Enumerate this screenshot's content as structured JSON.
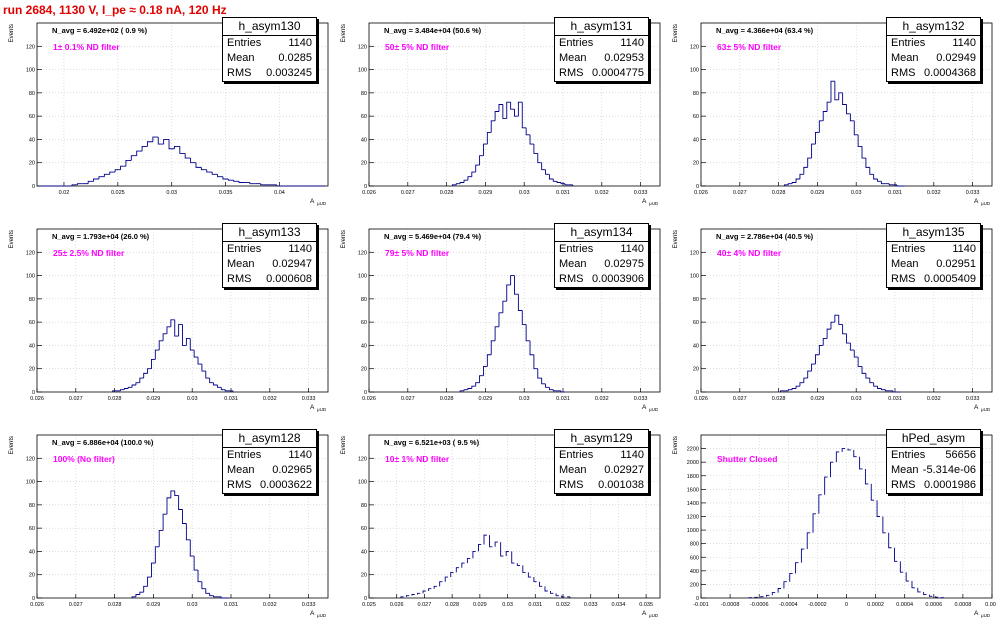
{
  "run_title": "run 2684,  1130 V, I_pe ≈ 0.18 nA, 120 Hz",
  "colors": {
    "title": "#e00000",
    "hist": "#00008b",
    "annotation": "#ff00ff",
    "grid": "#c8c8c8"
  },
  "stat_labels": {
    "entries": "Entries",
    "mean": "Mean",
    "rms": "RMS"
  },
  "y_title": "Events",
  "x_title": "A",
  "x_title_sub": "μUD",
  "chart_data": [
    {
      "type": "bar",
      "name": "h_asym130",
      "navg": "N_avg = 6.492e+02 ( 0.9 %)",
      "filter": "1± 0.1% ND filter",
      "entries": "1140",
      "mean": "0.0285",
      "rms": "0.003245",
      "xmin": 0.0175,
      "xmax": 0.0445,
      "ymin": 0,
      "ymax": 140,
      "xticks": [
        0.02,
        0.025,
        0.03,
        0.035,
        0.04
      ],
      "xtick_labels": [
        "0.02",
        "0.025",
        "0.03",
        "0.035",
        "0.04"
      ],
      "yticks": [
        0,
        20,
        40,
        60,
        80,
        100,
        120
      ],
      "ytick_labels": [
        "0",
        "20",
        "40",
        "60",
        "80",
        "100",
        "120"
      ],
      "bin_width": 0.0005,
      "centers": [
        0.018,
        0.0185,
        0.019,
        0.0195,
        0.02,
        0.0205,
        0.021,
        0.0215,
        0.022,
        0.0225,
        0.023,
        0.0235,
        0.024,
        0.0245,
        0.025,
        0.0255,
        0.026,
        0.0265,
        0.027,
        0.0275,
        0.028,
        0.0285,
        0.029,
        0.0295,
        0.03,
        0.0305,
        0.031,
        0.0315,
        0.032,
        0.0325,
        0.033,
        0.0335,
        0.034,
        0.0345,
        0.035,
        0.0355,
        0.036,
        0.0365,
        0.037,
        0.0375,
        0.038,
        0.0385,
        0.039,
        0.0395,
        0.04,
        0.0405,
        0.041,
        0.0415,
        0.042,
        0.0425,
        0.043,
        0.0435,
        0.044
      ],
      "counts": [
        0,
        0,
        0,
        0,
        0,
        0,
        1,
        2,
        2,
        4,
        6,
        8,
        10,
        12,
        14,
        17,
        22,
        26,
        30,
        34,
        38,
        42,
        36,
        40,
        32,
        34,
        28,
        24,
        20,
        16,
        14,
        12,
        10,
        8,
        6,
        5,
        4,
        3,
        3,
        2,
        2,
        1,
        1,
        1,
        0,
        0,
        0,
        0,
        0,
        0,
        0,
        0,
        0
      ]
    },
    {
      "type": "bar",
      "name": "h_asym131",
      "navg": "N_avg = 3.484e+04 (50.6 %)",
      "filter": "50± 5% ND filter",
      "entries": "1140",
      "mean": "0.02953",
      "rms": "0.0004775",
      "xmin": 0.026,
      "xmax": 0.0335,
      "ymin": 0,
      "ymax": 140,
      "xticks": [
        0.026,
        0.027,
        0.028,
        0.029,
        0.03,
        0.031,
        0.032,
        0.033
      ],
      "xtick_labels": [
        "0.026",
        "0.027",
        "0.028",
        "0.029",
        "0.03",
        "0.031",
        "0.032",
        "0.033"
      ],
      "yticks": [
        0,
        20,
        40,
        60,
        80,
        100,
        120
      ],
      "ytick_labels": [
        "0",
        "20",
        "40",
        "60",
        "80",
        "100",
        "120"
      ],
      "bin_width": 0.0001,
      "centers": [
        0.0282,
        0.0283,
        0.0284,
        0.0285,
        0.0286,
        0.0287,
        0.0288,
        0.0289,
        0.029,
        0.0291,
        0.0292,
        0.0293,
        0.0294,
        0.0295,
        0.0296,
        0.0297,
        0.0298,
        0.0299,
        0.03,
        0.0301,
        0.0302,
        0.0303,
        0.0304,
        0.0305,
        0.0306,
        0.0307,
        0.0308,
        0.0309,
        0.031,
        0.0311,
        0.0312
      ],
      "counts": [
        1,
        2,
        3,
        5,
        8,
        12,
        18,
        26,
        36,
        46,
        56,
        64,
        70,
        58,
        72,
        66,
        60,
        72,
        50,
        44,
        36,
        28,
        20,
        14,
        10,
        6,
        4,
        3,
        2,
        1,
        1
      ]
    },
    {
      "type": "bar",
      "name": "h_asym132",
      "navg": "N_avg = 4.366e+04 (63.4 %)",
      "filter": "63± 5% ND filter",
      "entries": "1140",
      "mean": "0.02949",
      "rms": "0.0004368",
      "xmin": 0.026,
      "xmax": 0.0335,
      "ymin": 0,
      "ymax": 140,
      "xticks": [
        0.026,
        0.027,
        0.028,
        0.029,
        0.03,
        0.031,
        0.032,
        0.033
      ],
      "xtick_labels": [
        "0.026",
        "0.027",
        "0.028",
        "0.029",
        "0.03",
        "0.031",
        "0.032",
        "0.033"
      ],
      "yticks": [
        0,
        20,
        40,
        60,
        80,
        100,
        120
      ],
      "ytick_labels": [
        "0",
        "20",
        "40",
        "60",
        "80",
        "100",
        "120"
      ],
      "bin_width": 0.0001,
      "centers": [
        0.0282,
        0.0283,
        0.0284,
        0.0285,
        0.0286,
        0.0287,
        0.0288,
        0.0289,
        0.029,
        0.0291,
        0.0292,
        0.0293,
        0.0294,
        0.0295,
        0.0296,
        0.0297,
        0.0298,
        0.0299,
        0.03,
        0.0301,
        0.0302,
        0.0303,
        0.0304,
        0.0305,
        0.0306,
        0.0307,
        0.0308,
        0.0309,
        0.031,
        0.0311,
        0.0312
      ],
      "counts": [
        1,
        2,
        3,
        6,
        10,
        16,
        24,
        36,
        46,
        56,
        64,
        72,
        90,
        74,
        80,
        70,
        62,
        56,
        44,
        34,
        24,
        16,
        10,
        6,
        4,
        2,
        2,
        1,
        1,
        0,
        0
      ]
    },
    {
      "type": "bar",
      "name": "h_asym133",
      "navg": "N_avg = 1.793e+04 (26.0 %)",
      "filter": "25± 2.5% ND filter",
      "entries": "1140",
      "mean": "0.02947",
      "rms": "0.000608",
      "xmin": 0.026,
      "xmax": 0.0335,
      "ymin": 0,
      "ymax": 140,
      "xticks": [
        0.026,
        0.027,
        0.028,
        0.029,
        0.03,
        0.031,
        0.032,
        0.033
      ],
      "xtick_labels": [
        "0.026",
        "0.027",
        "0.028",
        "0.029",
        "0.03",
        "0.031",
        "0.032",
        "0.033"
      ],
      "yticks": [
        0,
        20,
        40,
        60,
        80,
        100,
        120
      ],
      "ytick_labels": [
        "0",
        "20",
        "40",
        "60",
        "80",
        "100",
        "120"
      ],
      "bin_width": 0.0001,
      "centers": [
        0.028,
        0.0281,
        0.0282,
        0.0283,
        0.0284,
        0.0285,
        0.0286,
        0.0287,
        0.0288,
        0.0289,
        0.029,
        0.0291,
        0.0292,
        0.0293,
        0.0294,
        0.0295,
        0.0296,
        0.0297,
        0.0298,
        0.0299,
        0.03,
        0.0301,
        0.0302,
        0.0303,
        0.0304,
        0.0305,
        0.0306,
        0.0307,
        0.0308,
        0.0309,
        0.031
      ],
      "counts": [
        1,
        1,
        2,
        3,
        4,
        6,
        8,
        12,
        16,
        20,
        28,
        36,
        44,
        50,
        56,
        62,
        48,
        58,
        40,
        46,
        36,
        30,
        24,
        18,
        12,
        8,
        6,
        4,
        2,
        1,
        1
      ]
    },
    {
      "type": "bar",
      "name": "h_asym134",
      "navg": "N_avg = 5.469e+04 (79.4 %)",
      "filter": "79± 5% ND filter",
      "entries": "1140",
      "mean": "0.02975",
      "rms": "0.0003906",
      "xmin": 0.026,
      "xmax": 0.0335,
      "ymin": 0,
      "ymax": 140,
      "xticks": [
        0.026,
        0.027,
        0.028,
        0.029,
        0.03,
        0.031,
        0.032,
        0.033
      ],
      "xtick_labels": [
        "0.026",
        "0.027",
        "0.028",
        "0.029",
        "0.03",
        "0.031",
        "0.032",
        "0.033"
      ],
      "yticks": [
        0,
        20,
        40,
        60,
        80,
        100,
        120
      ],
      "ytick_labels": [
        "0",
        "20",
        "40",
        "60",
        "80",
        "100",
        "120"
      ],
      "bin_width": 0.0001,
      "centers": [
        0.0284,
        0.0285,
        0.0286,
        0.0287,
        0.0288,
        0.0289,
        0.029,
        0.0291,
        0.0292,
        0.0293,
        0.0294,
        0.0295,
        0.0296,
        0.0297,
        0.0298,
        0.0299,
        0.03,
        0.0301,
        0.0302,
        0.0303,
        0.0304,
        0.0305,
        0.0306,
        0.0307,
        0.0308,
        0.0309,
        0.031
      ],
      "counts": [
        1,
        2,
        3,
        5,
        8,
        14,
        22,
        32,
        44,
        56,
        68,
        78,
        92,
        100,
        84,
        70,
        58,
        44,
        32,
        20,
        12,
        7,
        4,
        2,
        1,
        1,
        0
      ]
    },
    {
      "type": "bar",
      "name": "h_asym135",
      "navg": "N_avg = 2.786e+04 (40.5 %)",
      "filter": "40± 4% ND filter",
      "entries": "1140",
      "mean": "0.02951",
      "rms": "0.0005409",
      "xmin": 0.026,
      "xmax": 0.0335,
      "ymin": 0,
      "ymax": 140,
      "xticks": [
        0.026,
        0.027,
        0.028,
        0.029,
        0.03,
        0.031,
        0.032,
        0.033
      ],
      "xtick_labels": [
        "0.026",
        "0.027",
        "0.028",
        "0.029",
        "0.03",
        "0.031",
        "0.032",
        "0.033"
      ],
      "yticks": [
        0,
        20,
        40,
        60,
        80,
        100,
        120
      ],
      "ytick_labels": [
        "0",
        "20",
        "40",
        "60",
        "80",
        "100",
        "120"
      ],
      "bin_width": 0.0001,
      "centers": [
        0.0281,
        0.0282,
        0.0283,
        0.0284,
        0.0285,
        0.0286,
        0.0287,
        0.0288,
        0.0289,
        0.029,
        0.0291,
        0.0292,
        0.0293,
        0.0294,
        0.0295,
        0.0296,
        0.0297,
        0.0298,
        0.0299,
        0.03,
        0.0301,
        0.0302,
        0.0303,
        0.0304,
        0.0305,
        0.0306,
        0.0307,
        0.0308,
        0.0309,
        0.031,
        0.0311
      ],
      "counts": [
        1,
        1,
        2,
        3,
        5,
        8,
        12,
        18,
        24,
        32,
        40,
        46,
        54,
        60,
        66,
        58,
        50,
        42,
        36,
        30,
        22,
        16,
        12,
        8,
        5,
        3,
        2,
        1,
        1,
        0,
        0
      ]
    },
    {
      "type": "bar",
      "name": "h_asym128",
      "navg": "N_avg = 6.886e+04 (100.0 %)",
      "filter": "100% (No filter)",
      "entries": "1140",
      "mean": "0.02965",
      "rms": "0.0003622",
      "xmin": 0.026,
      "xmax": 0.0335,
      "ymin": 0,
      "ymax": 140,
      "xticks": [
        0.026,
        0.027,
        0.028,
        0.029,
        0.03,
        0.031,
        0.032,
        0.033
      ],
      "xtick_labels": [
        "0.026",
        "0.027",
        "0.028",
        "0.029",
        "0.03",
        "0.031",
        "0.032",
        "0.033"
      ],
      "yticks": [
        0,
        20,
        40,
        60,
        80,
        100,
        120
      ],
      "ytick_labels": [
        "0",
        "20",
        "40",
        "60",
        "80",
        "100",
        "120"
      ],
      "bin_width": 0.0001,
      "centers": [
        0.0285,
        0.0286,
        0.0287,
        0.0288,
        0.0289,
        0.029,
        0.0291,
        0.0292,
        0.0293,
        0.0294,
        0.0295,
        0.0296,
        0.0297,
        0.0298,
        0.0299,
        0.03,
        0.0301,
        0.0302,
        0.0303,
        0.0304,
        0.0305,
        0.0306,
        0.0307,
        0.0308,
        0.0309
      ],
      "counts": [
        1,
        3,
        5,
        10,
        18,
        30,
        44,
        58,
        72,
        86,
        92,
        88,
        76,
        64,
        50,
        36,
        24,
        14,
        8,
        4,
        2,
        1,
        1,
        0,
        0
      ]
    },
    {
      "type": "bar",
      "name": "h_asym129",
      "navg": "N_avg = 6.521e+03 ( 9.5 %)",
      "filter": "10± 1% ND filter",
      "entries": "1140",
      "mean": "0.02927",
      "rms": "0.001038",
      "xmin": 0.025,
      "xmax": 0.0355,
      "ymin": 0,
      "ymax": 140,
      "xticks": [
        0.025,
        0.026,
        0.027,
        0.028,
        0.029,
        0.03,
        0.031,
        0.032,
        0.033,
        0.034,
        0.035
      ],
      "xtick_labels": [
        "0.025",
        "0.026",
        "0.027",
        "0.028",
        "0.029",
        "0.03",
        "0.031",
        "0.032",
        "0.033",
        "0.034",
        "0.035"
      ],
      "yticks": [
        0,
        20,
        40,
        60,
        80,
        100,
        120
      ],
      "ytick_labels": [
        "0",
        "20",
        "40",
        "60",
        "80",
        "100",
        "120"
      ],
      "bin_width": 0.0001,
      "centers": [
        0.0262,
        0.0264,
        0.0266,
        0.0268,
        0.027,
        0.0272,
        0.0274,
        0.0276,
        0.0278,
        0.028,
        0.0282,
        0.0284,
        0.0286,
        0.0288,
        0.029,
        0.0292,
        0.0294,
        0.0296,
        0.0298,
        0.03,
        0.0302,
        0.0304,
        0.0306,
        0.0308,
        0.031,
        0.0312,
        0.0314,
        0.0316,
        0.0318,
        0.032,
        0.0322
      ],
      "counts": [
        1,
        2,
        3,
        4,
        6,
        8,
        10,
        14,
        18,
        22,
        26,
        30,
        34,
        40,
        46,
        54,
        44,
        48,
        36,
        40,
        30,
        28,
        22,
        18,
        14,
        10,
        6,
        4,
        2,
        1,
        1
      ]
    },
    {
      "type": "bar",
      "name": "hPed_asym",
      "navg": "",
      "filter": "Shutter Closed",
      "entries": "56656",
      "mean": "-5.314e-06",
      "rms": "0.0001986",
      "xmin": -0.001,
      "xmax": 0.001,
      "ymin": 0,
      "ymax": 2400,
      "xticks": [
        -0.001,
        -0.0008,
        -0.0006,
        -0.0004,
        -0.0002,
        0,
        0.0002,
        0.0004,
        0.0006,
        0.0008,
        0.001
      ],
      "xtick_labels": [
        "-0.001",
        "-0.0008",
        "-0.0006",
        "-0.0004",
        "-0.0002",
        "0",
        "0.0002",
        "0.0004",
        "0.0006",
        "0.0008",
        "0.001"
      ],
      "yticks": [
        0,
        200,
        400,
        600,
        800,
        1000,
        1200,
        1400,
        1600,
        1800,
        2000,
        2200
      ],
      "ytick_labels": [
        "0",
        "200",
        "400",
        "600",
        "800",
        "1000",
        "1200",
        "1400",
        "1600",
        "1800",
        "2000",
        "2200"
      ],
      "bin_width": 2e-05,
      "centers": [
        -0.00066,
        -0.00062,
        -0.00058,
        -0.00054,
        -0.0005,
        -0.00046,
        -0.00042,
        -0.00038,
        -0.00034,
        -0.0003,
        -0.00026,
        -0.00022,
        -0.00018,
        -0.00014,
        -0.0001,
        -6e-05,
        -2e-05,
        2e-05,
        6e-05,
        0.0001,
        0.00014,
        0.00018,
        0.00022,
        0.00026,
        0.0003,
        0.00034,
        0.00038,
        0.00042,
        0.00046,
        0.0005,
        0.00054,
        0.00058,
        0.00062,
        0.00066
      ],
      "counts": [
        5,
        10,
        20,
        40,
        80,
        140,
        240,
        360,
        520,
        720,
        960,
        1240,
        1520,
        1780,
        2000,
        2150,
        2200,
        2180,
        2080,
        1900,
        1680,
        1440,
        1200,
        960,
        740,
        540,
        380,
        250,
        150,
        90,
        50,
        25,
        12,
        5
      ]
    }
  ]
}
